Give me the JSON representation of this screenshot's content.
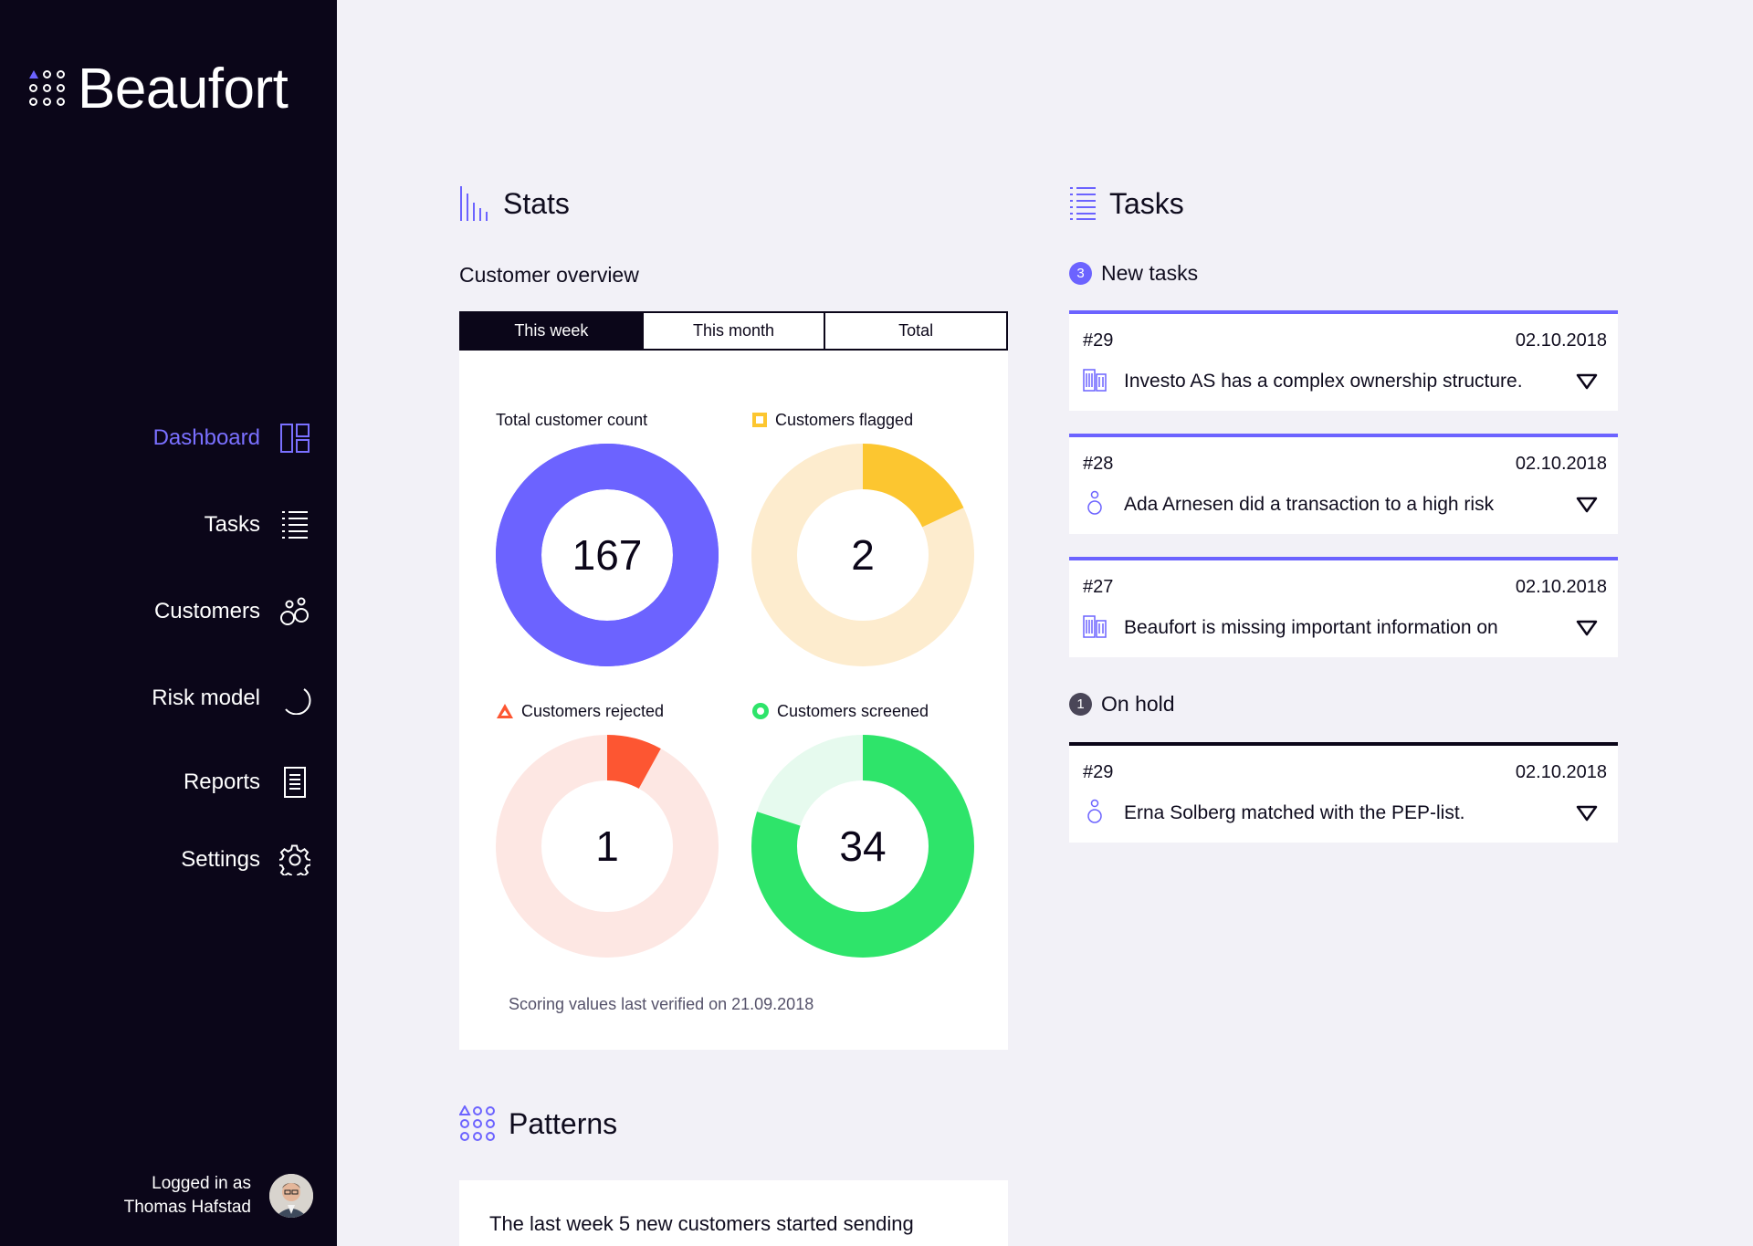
{
  "brand": {
    "name": "Beaufort"
  },
  "nav": [
    {
      "label": "Dashboard",
      "icon": "dashboard-icon",
      "active": true
    },
    {
      "label": "Tasks",
      "icon": "list-icon"
    },
    {
      "label": "Customers",
      "icon": "customers-icon"
    },
    {
      "label": "Risk model",
      "icon": "risk-model-icon"
    },
    {
      "label": "Reports",
      "icon": "report-icon"
    },
    {
      "label": "Settings",
      "icon": "gear-icon"
    }
  ],
  "user": {
    "logged_in_label": "Logged in as",
    "name": "Thomas Hafstad"
  },
  "stats": {
    "title": "Stats",
    "subtitle": "Customer overview",
    "tabs": [
      {
        "label": "This week",
        "active": true
      },
      {
        "label": "This month"
      },
      {
        "label": "Total"
      }
    ],
    "donuts": [
      {
        "label": "Total customer count",
        "value": "167",
        "fraction": 1.0,
        "color": "#6c63ff",
        "track": "#6c63ff",
        "marker": "none"
      },
      {
        "label": "Customers flagged",
        "value": "2",
        "fraction": 0.18,
        "color": "#fcc630",
        "track": "#fdecce",
        "marker": "square"
      },
      {
        "label": "Customers rejected",
        "value": "1",
        "fraction": 0.08,
        "color": "#fd5632",
        "track": "#fde7e3",
        "marker": "triangle"
      },
      {
        "label": "Customers screened",
        "value": "34",
        "fraction": 0.8,
        "color": "#2ee46a",
        "track": "#e6faee",
        "marker": "circle"
      }
    ],
    "verified_text": "Scoring values last verified on 21.09.2018"
  },
  "patterns": {
    "title": "Patterns",
    "text": "The last week 5 new customers started sending"
  },
  "tasks": {
    "title": "Tasks",
    "new_label": "New tasks",
    "new_count": "3",
    "hold_label": "On hold",
    "hold_count": "1",
    "new_items": [
      {
        "id": "#29",
        "date": "02.10.2018",
        "text": "Investo AS has a complex ownership structure.",
        "icon": "building-icon"
      },
      {
        "id": "#28",
        "date": "02.10.2018",
        "text": "Ada Arnesen did a transaction to a high risk",
        "icon": "person-icon"
      },
      {
        "id": "#27",
        "date": "02.10.2018",
        "text": "Beaufort is missing important information on",
        "icon": "building-icon"
      }
    ],
    "hold_items": [
      {
        "id": "#29",
        "date": "02.10.2018",
        "text": "Erna Solberg matched with the PEP-list.",
        "icon": "person-icon"
      }
    ]
  },
  "colors": {
    "accent": "#6c63ff",
    "sidebar": "#0b0619",
    "background": "#f2f1f7"
  }
}
